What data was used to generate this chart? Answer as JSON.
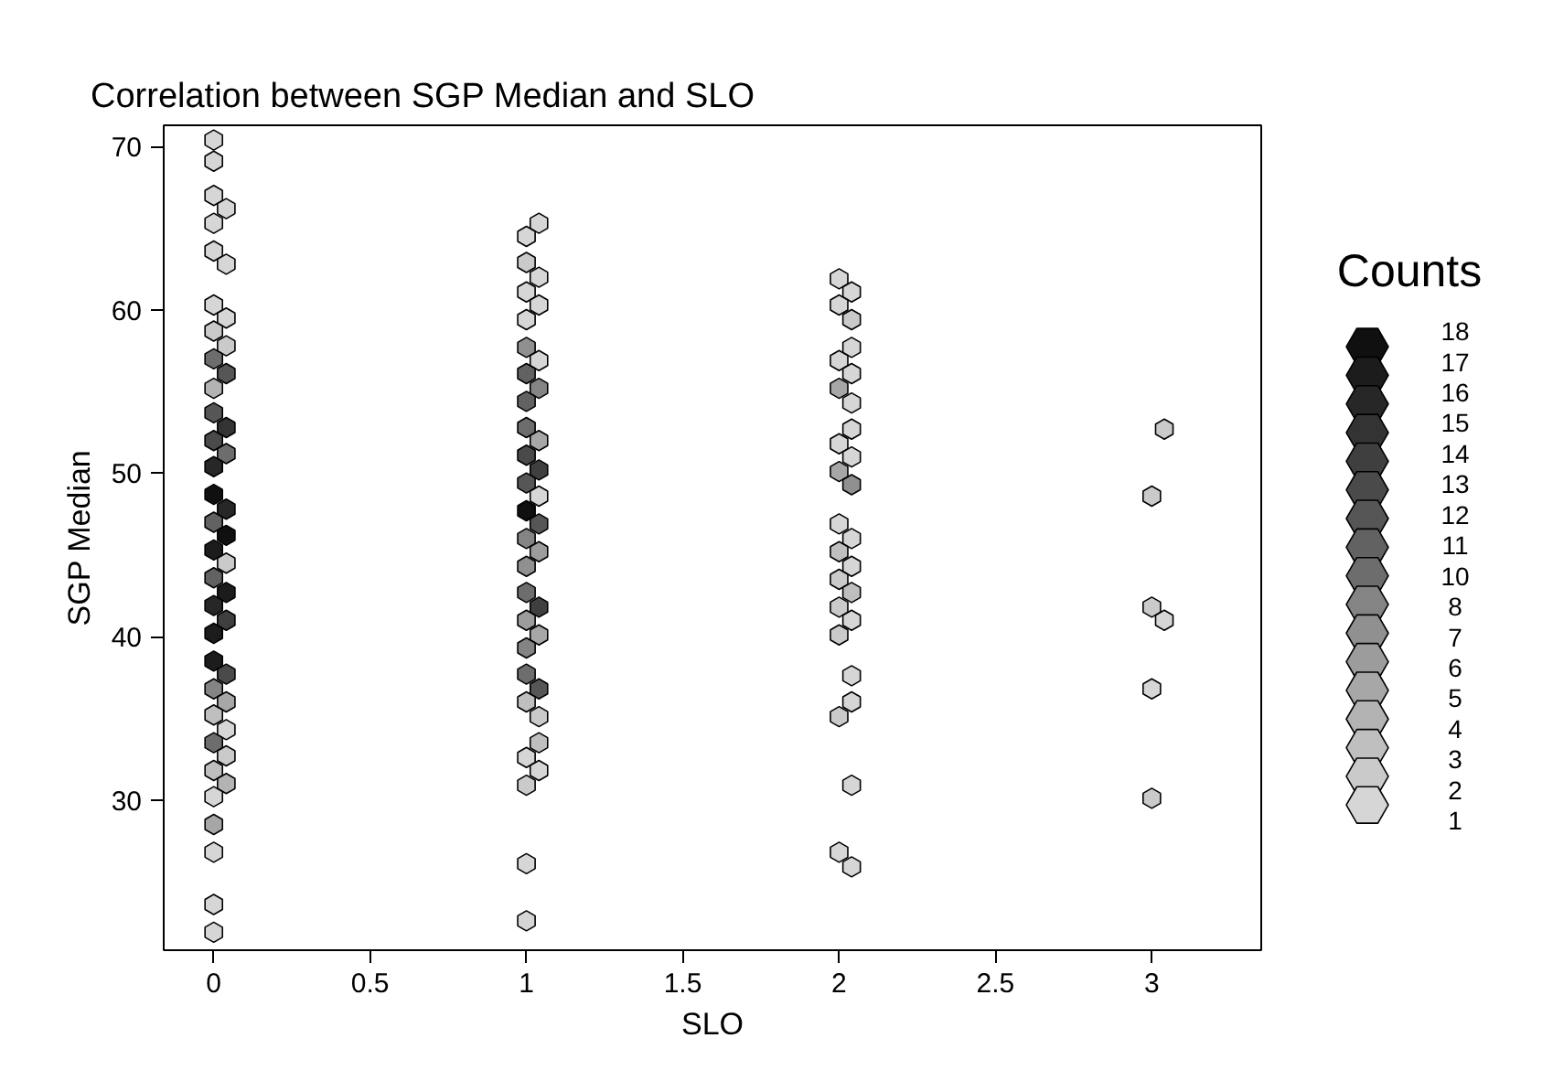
{
  "chart_data": {
    "type": "scatter",
    "title": "Correlation between SGP Median and SLO",
    "xlabel": "SLO",
    "ylabel": "SGP Median",
    "legend_title": "Counts",
    "xlim": [
      -0.16,
      3.35
    ],
    "ylim": [
      20.8,
      71.3
    ],
    "xticks": [
      0,
      0.5,
      1,
      1.5,
      2,
      2.5,
      3
    ],
    "yticks": [
      30,
      40,
      50,
      60,
      70
    ],
    "grid": false,
    "clim": [
      1,
      18
    ],
    "cticks": [
      18,
      17,
      16,
      15,
      14,
      13,
      12,
      11,
      10,
      8,
      7,
      6,
      5,
      4,
      3,
      2,
      1
    ],
    "series": [
      {
        "x": [
          0,
          0,
          0,
          0.04,
          0,
          0,
          0.04,
          0,
          0.04,
          0,
          0.04,
          0,
          0.04,
          0,
          0,
          0.04,
          0,
          0.04,
          0,
          0,
          0.04,
          0,
          0.04,
          0,
          0.04,
          0,
          0.04,
          0,
          0.04,
          0,
          0,
          0.04,
          0,
          0.04,
          0,
          0.04,
          0,
          0.04,
          0,
          0.04,
          0,
          0,
          0,
          0,
          0,
          1.04,
          1,
          1,
          1.04,
          1,
          1.04,
          1,
          1,
          1.04,
          1,
          1.04,
          1,
          1,
          1.04,
          1,
          1.04,
          1,
          1.04,
          1,
          1.04,
          1,
          1.04,
          1,
          1,
          1.04,
          1,
          1.04,
          1,
          1,
          1.04,
          1,
          1.04,
          1.04,
          1,
          1.04,
          1,
          1,
          1,
          2,
          2.04,
          2,
          2.04,
          2.04,
          2,
          2.04,
          2,
          2.04,
          2.04,
          2,
          2.04,
          2,
          2.04,
          2,
          2.04,
          2,
          2.04,
          2,
          2.04,
          2,
          2.04,
          2,
          2.04,
          2.04,
          2,
          2.04,
          2,
          2.04,
          3.04,
          3,
          3,
          3.04,
          3,
          3
        ],
        "values": [
          70.4,
          69.1,
          67.0,
          66.2,
          65.3,
          63.6,
          62.8,
          60.3,
          59.5,
          58.7,
          57.8,
          57.0,
          56.1,
          55.2,
          53.7,
          52.8,
          52.0,
          51.2,
          50.4,
          48.7,
          47.8,
          47.0,
          46.2,
          45.3,
          44.5,
          43.6,
          42.7,
          41.9,
          41.0,
          40.2,
          38.5,
          37.7,
          36.8,
          36.0,
          35.2,
          34.3,
          33.5,
          32.7,
          31.8,
          31.0,
          30.2,
          28.5,
          26.8,
          23.6,
          21.9,
          65.3,
          64.5,
          62.9,
          62.0,
          61.1,
          60.3,
          59.4,
          57.7,
          56.9,
          56.1,
          55.2,
          54.4,
          52.8,
          52.0,
          51.1,
          50.2,
          49.4,
          48.6,
          47.7,
          46.9,
          46.0,
          45.2,
          44.3,
          42.7,
          41.8,
          41.0,
          40.1,
          39.3,
          37.7,
          36.8,
          36.0,
          35.1,
          33.5,
          32.6,
          31.8,
          30.9,
          26.1,
          22.6,
          61.9,
          61.1,
          60.3,
          59.4,
          57.7,
          56.9,
          56.1,
          55.2,
          54.3,
          52.7,
          51.8,
          51.0,
          50.1,
          49.3,
          46.9,
          46.0,
          45.2,
          44.3,
          43.5,
          42.7,
          41.8,
          41.0,
          40.1,
          37.6,
          36.0,
          35.1,
          30.9,
          26.8,
          25.9,
          52.7,
          48.6,
          41.8,
          41.0,
          36.8,
          30.1
        ],
        "cvalues": [
          1,
          1,
          1,
          1,
          1,
          1,
          1,
          1,
          1,
          2,
          2,
          10,
          12,
          4,
          12,
          15,
          13,
          10,
          16,
          18,
          16,
          11,
          18,
          17,
          2,
          11,
          17,
          16,
          14,
          17,
          17,
          13,
          8,
          5,
          3,
          1,
          10,
          2,
          3,
          4,
          1,
          5,
          1,
          1,
          1,
          1,
          1,
          2,
          1,
          1,
          1,
          1,
          7,
          1,
          11,
          8,
          11,
          10,
          5,
          13,
          14,
          12,
          1,
          18,
          12,
          8,
          6,
          7,
          10,
          14,
          6,
          5,
          8,
          10,
          12,
          3,
          2,
          3,
          1,
          1,
          2,
          1,
          1,
          1,
          1,
          1,
          2,
          1,
          1,
          1,
          5,
          1,
          1,
          1,
          1,
          5,
          7,
          1,
          1,
          3,
          1,
          2,
          3,
          2,
          1,
          2,
          1,
          1,
          2,
          1,
          1,
          1,
          2,
          2,
          2,
          1,
          1,
          2
        ]
      }
    ]
  }
}
